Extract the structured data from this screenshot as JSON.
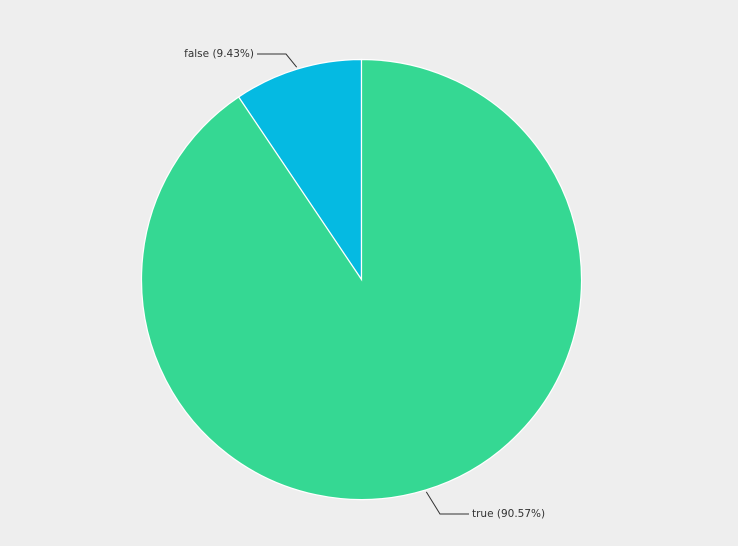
{
  "chart_data": {
    "type": "pie",
    "start_angle_deg": 0,
    "direction": "clockwise",
    "slices": [
      {
        "label": "false (9.43%)",
        "category": "false",
        "value": 9.43,
        "color": "#05bae2"
      },
      {
        "label": "true (90.57%)",
        "category": "true",
        "value": 90.57,
        "color": "#35d893"
      }
    ],
    "slice_border_color": "#ffffff",
    "leader_line_color": "#333333"
  },
  "colors": {
    "background": "#eeeeee"
  }
}
